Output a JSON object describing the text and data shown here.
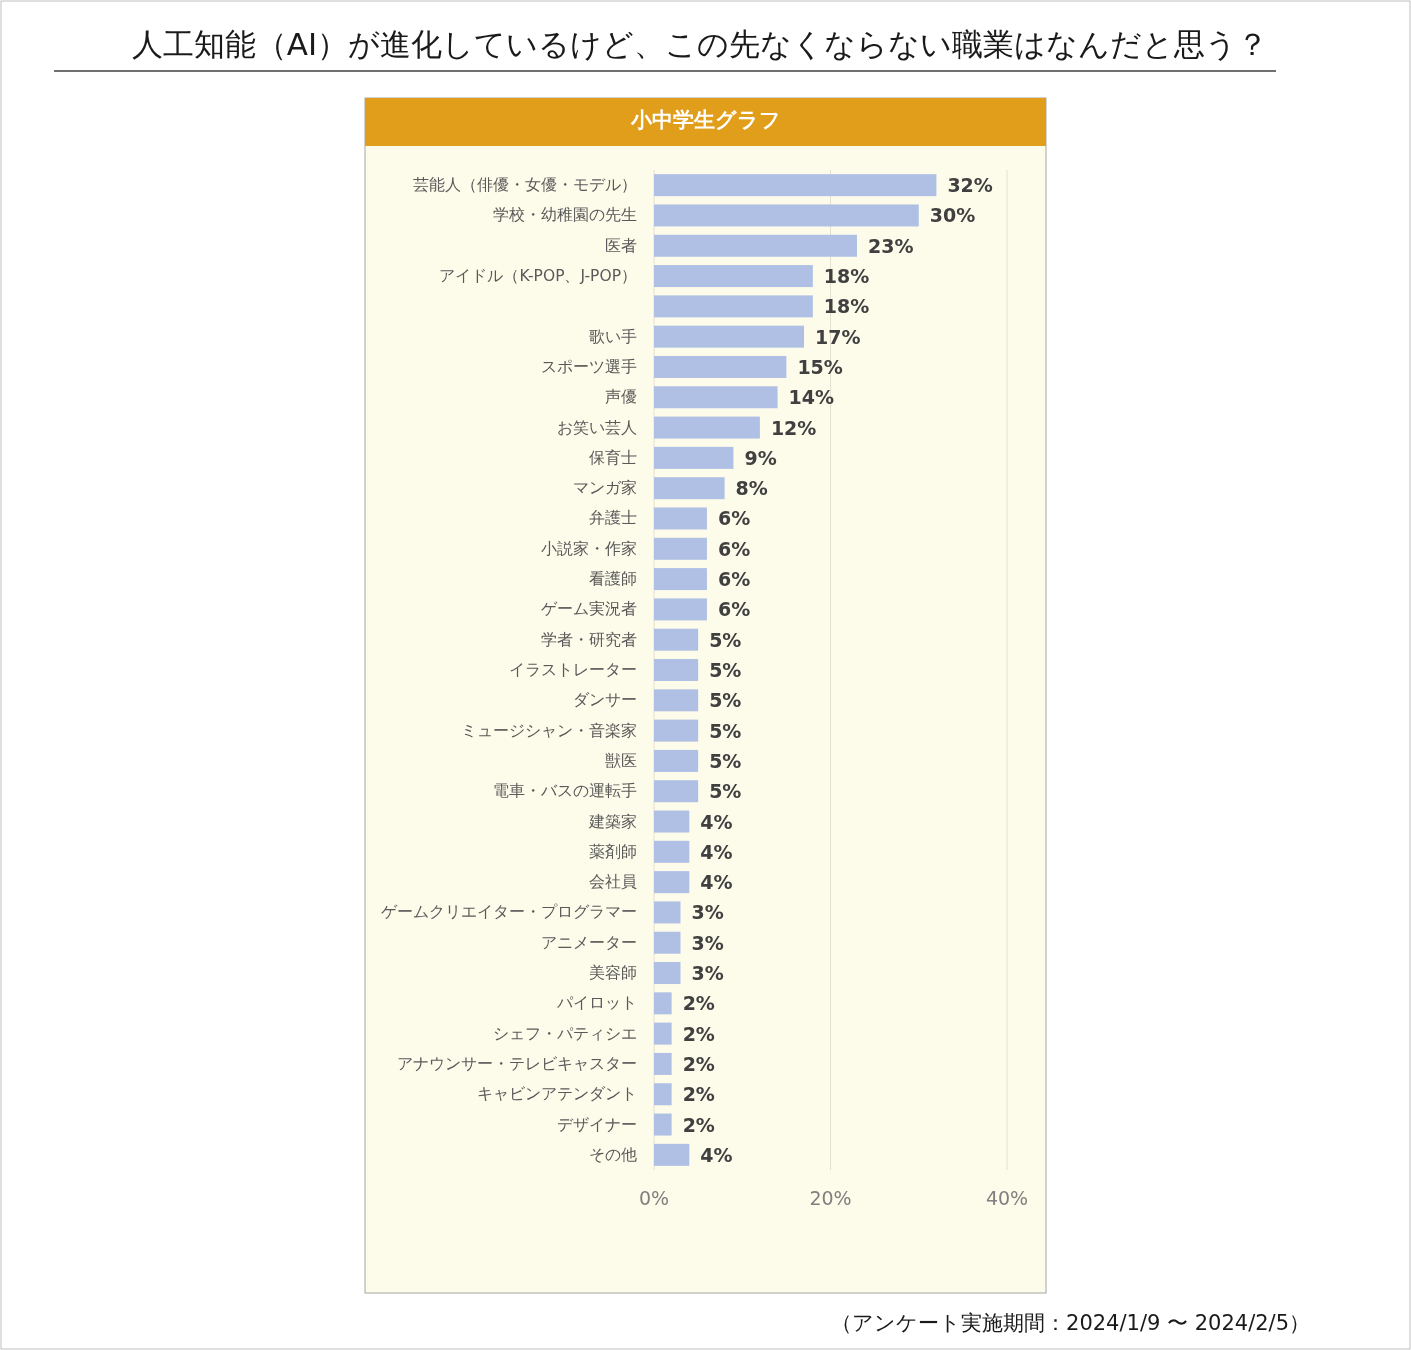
{
  "chart_data": {
    "type": "bar",
    "orientation": "horizontal",
    "title": "人工知能（AI）が進化しているけど、この先なくならない職業はなんだと思う？",
    "subtitle": "小中学生グラフ",
    "categories": [
      "芸能人（俳優・女優・モデル）",
      "学校・幼稚園の先生",
      "医者",
      "アイドル（K-POP、J-POP）",
      null,
      "歌い手",
      "スポーツ選手",
      "声優",
      "お笑い芸人",
      "保育士",
      "マンガ家",
      "弁護士",
      "小説家・作家",
      "看護師",
      "ゲーム実況者",
      "学者・研究者",
      "イラストレーター",
      "ダンサー",
      "ミュージシャン・音楽家",
      "獣医",
      "電車・バスの運転手",
      "建築家",
      "薬剤師",
      "会社員",
      "ゲームクリエイター・プログラマー",
      "アニメーター",
      "美容師",
      "パイロット",
      "シェフ・パティシエ",
      "アナウンサー・テレビキャスター",
      "キャビンアテンダント",
      "デザイナー",
      "その他"
    ],
    "values": [
      32,
      30,
      23,
      18,
      18,
      17,
      15,
      14,
      12,
      9,
      8,
      6,
      6,
      6,
      6,
      5,
      5,
      5,
      5,
      5,
      5,
      4,
      4,
      4,
      3,
      3,
      3,
      2,
      2,
      2,
      2,
      2,
      4
    ],
    "value_labels": [
      "32%",
      "30%",
      "23%",
      "18%",
      "18%",
      "17%",
      "15%",
      "14%",
      "12%",
      "9%",
      "8%",
      "6%",
      "6%",
      "6%",
      "6%",
      "5%",
      "5%",
      "5%",
      "5%",
      "5%",
      "5%",
      "4%",
      "4%",
      "4%",
      "3%",
      "3%",
      "3%",
      "2%",
      "2%",
      "2%",
      "2%",
      "2%",
      "4%"
    ],
    "color": "#afc0e4",
    "xlim": [
      0,
      40
    ],
    "xticks": [
      {
        "value": 0,
        "label": "0%"
      },
      {
        "value": 20,
        "label": "20%"
      },
      {
        "value": 40,
        "label": "40%"
      }
    ],
    "grid": "x",
    "annotations": [
      "（アンケート実施期間：2024/1/9 〜 2024/2/5）"
    ]
  }
}
